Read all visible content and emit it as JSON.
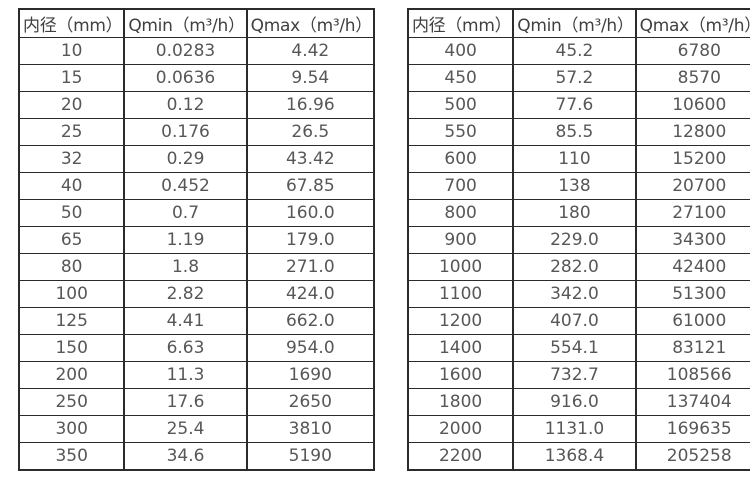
{
  "border_color": "#2b2b2b",
  "header_text_color": "#404040",
  "cell_text_color": "#575757",
  "tables": [
    {
      "name": "small-diameter-flow-table",
      "columns": [
        "内径（mm）",
        "Qmin（m³/h）",
        "Qmax（m³/h）"
      ],
      "rows": [
        [
          "10",
          "0.0283",
          "4.42"
        ],
        [
          "15",
          "0.0636",
          "9.54"
        ],
        [
          "20",
          "0.12",
          "16.96"
        ],
        [
          "25",
          "0.176",
          "26.5"
        ],
        [
          "32",
          "0.29",
          "43.42"
        ],
        [
          "40",
          "0.452",
          "67.85"
        ],
        [
          "50",
          "0.7",
          "160.0"
        ],
        [
          "65",
          "1.19",
          "179.0"
        ],
        [
          "80",
          "1.8",
          "271.0"
        ],
        [
          "100",
          "2.82",
          "424.0"
        ],
        [
          "125",
          "4.41",
          "662.0"
        ],
        [
          "150",
          "6.63",
          "954.0"
        ],
        [
          "200",
          "11.3",
          "1690"
        ],
        [
          "250",
          "17.6",
          "2650"
        ],
        [
          "300",
          "25.4",
          "3810"
        ],
        [
          "350",
          "34.6",
          "5190"
        ]
      ]
    },
    {
      "name": "large-diameter-flow-table",
      "columns": [
        "内径（mm）",
        "Qmin（m³/h）",
        "Qmax（m³/h）"
      ],
      "rows": [
        [
          "400",
          "45.2",
          "6780"
        ],
        [
          "450",
          "57.2",
          "8570"
        ],
        [
          "500",
          "77.6",
          "10600"
        ],
        [
          "550",
          "85.5",
          "12800"
        ],
        [
          "600",
          "110",
          "15200"
        ],
        [
          "700",
          "138",
          "20700"
        ],
        [
          "800",
          "180",
          "27100"
        ],
        [
          "900",
          "229.0",
          "34300"
        ],
        [
          "1000",
          "282.0",
          "42400"
        ],
        [
          "1100",
          "342.0",
          "51300"
        ],
        [
          "1200",
          "407.0",
          "61000"
        ],
        [
          "1400",
          "554.1",
          "83121"
        ],
        [
          "1600",
          "732.7",
          "108566"
        ],
        [
          "1800",
          "916.0",
          "137404"
        ],
        [
          "2000",
          "1131.0",
          "169635"
        ],
        [
          "2200",
          "1368.4",
          "205258"
        ]
      ]
    }
  ]
}
